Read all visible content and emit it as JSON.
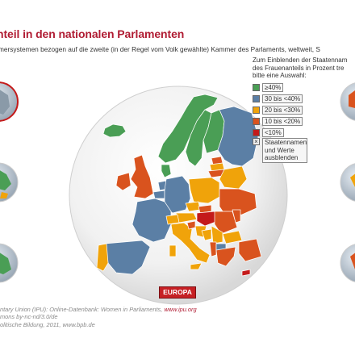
{
  "header": {
    "title": "nteil in den nationalen Parlamenten",
    "subtitle": "mersystemen bezogen auf die zweite (in der Regel vom Volk gewählte) Kammer des Parlaments, weltweit, S"
  },
  "legend": {
    "intro": "Zum Einblenden der Staatennam\ndes Frauenanteils in Prozent tre\nbitte eine Auswahl:",
    "items": [
      {
        "label": "≥40%",
        "color": "#4a9e55"
      },
      {
        "label": "30 bis <40%",
        "color": "#5b7fa5"
      },
      {
        "label": "20 bis <30%",
        "color": "#f0a30a"
      },
      {
        "label": "10 bis <20%",
        "color": "#d9531e"
      },
      {
        "label": "<10%",
        "color": "#c41a1a"
      }
    ],
    "toggle_label": "Staatennamen\nund Werte\nausblenden"
  },
  "map": {
    "region_button": "EUROPA"
  },
  "source": {
    "line1_prefix": "ntary Union (IPU): Online-Datenbank: Women in Parliaments, ",
    "line1_link": "www.ipu.org",
    "line2": "mons by-nc-nd/3.0/de",
    "line3": "olitische Bildung, 2011, www.bpb.de"
  }
}
